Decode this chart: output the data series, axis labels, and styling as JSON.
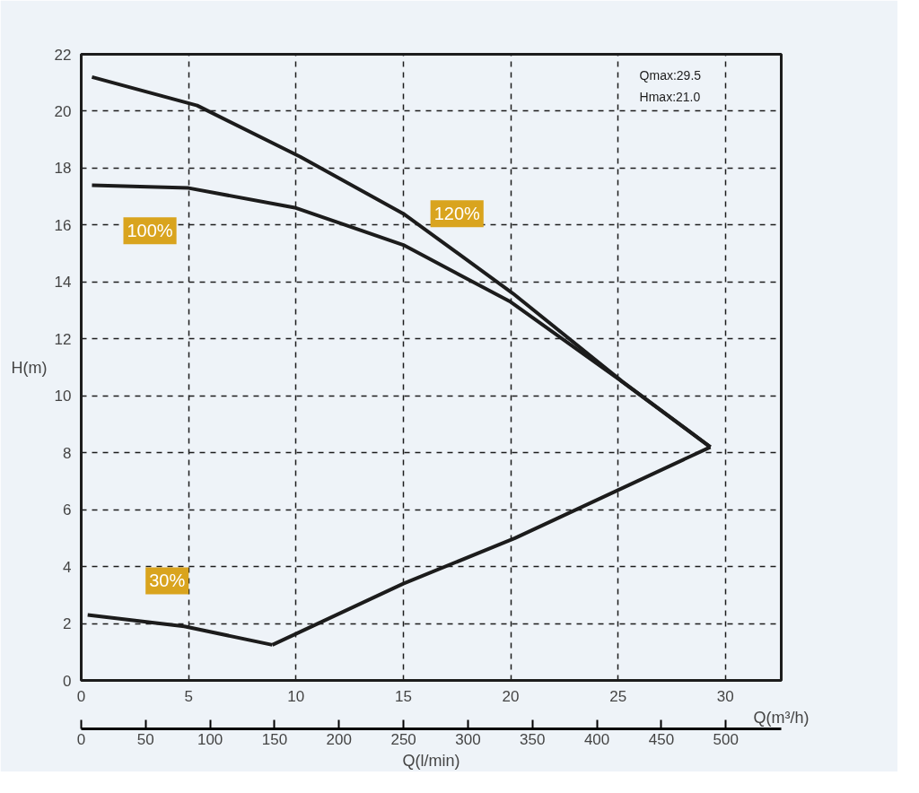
{
  "chart_data": {
    "type": "line",
    "xlabel": "Q(m³/h)",
    "ylabel": "H(m)",
    "x2label": "Q(l/min)",
    "xlim": [
      0,
      32.6
    ],
    "xticks": [
      0,
      5,
      10,
      15,
      20,
      25,
      30
    ],
    "ylim": [
      0,
      22
    ],
    "yticks": [
      0,
      2,
      4,
      6,
      8,
      10,
      12,
      14,
      16,
      18,
      20,
      22
    ],
    "x2lim": [
      0,
      543
    ],
    "x2ticks": [
      0,
      50,
      100,
      150,
      200,
      250,
      300,
      350,
      400,
      450,
      500
    ],
    "grid": true,
    "marker": "none",
    "line_style": "solid",
    "series": [
      {
        "name": "120%",
        "color": "#1c1c1c",
        "x": [
          0.5,
          5.4,
          10.2,
          15,
          20.1,
          25.2,
          29.3
        ],
        "values": [
          21.2,
          20.2,
          18.4,
          16.4,
          13.6,
          10.5,
          8.2
        ]
      },
      {
        "name": "100%",
        "color": "#1c1c1c",
        "x": [
          0.5,
          5,
          10,
          15,
          20,
          25,
          29.3
        ],
        "values": [
          17.4,
          17.3,
          16.6,
          15.3,
          13.3,
          10.6,
          8.2
        ]
      },
      {
        "name": "30%",
        "color": "#1c1c1c",
        "x": [
          0.3,
          4.8,
          8.9
        ],
        "values": [
          2.3,
          1.9,
          1.25
        ]
      },
      {
        "color": "#1c1c1c",
        "x": [
          8.9,
          15,
          20.2,
          29.3
        ],
        "values": [
          1.25,
          3.4,
          5.0,
          8.2
        ]
      }
    ],
    "annotations": [
      "Qmax:29.5",
      "Hmax:21.0"
    ]
  }
}
